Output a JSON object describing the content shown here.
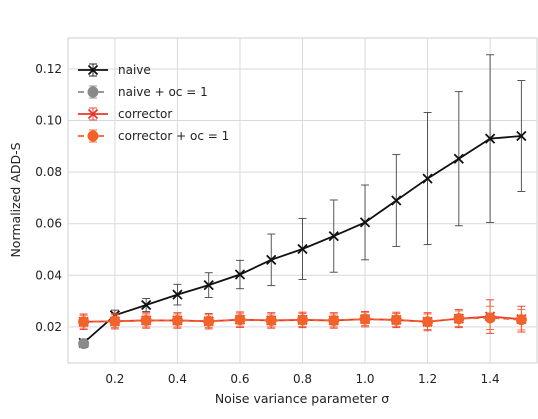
{
  "chart_data": {
    "type": "line",
    "xlabel": "Noise variance parameter σ",
    "ylabel": "Normalized ADD-S",
    "xlim": [
      0.05,
      1.55
    ],
    "ylim": [
      0.006,
      0.132
    ],
    "x_ticks": [
      0.2,
      0.4,
      0.6,
      0.8,
      1.0,
      1.2,
      1.4
    ],
    "x_tick_labels": [
      "0.2",
      "0.4",
      "0.6",
      "0.8",
      "1.0",
      "1.2",
      "1.4"
    ],
    "y_ticks": [
      0.02,
      0.04,
      0.06,
      0.08,
      0.1,
      0.12
    ],
    "y_tick_labels": [
      "0.02",
      "0.04",
      "0.06",
      "0.08",
      "0.10",
      "0.12"
    ],
    "grid": true,
    "legend_position": "top-left",
    "series": [
      {
        "name": "naive",
        "color": "#111111",
        "line_style": "solid",
        "marker": "x",
        "x": [
          0.1,
          0.2,
          0.3,
          0.4,
          0.5,
          0.6,
          0.7,
          0.8,
          0.9,
          1.0,
          1.1,
          1.2,
          1.3,
          1.4,
          1.5
        ],
        "y": [
          0.0138,
          0.0245,
          0.0285,
          0.0325,
          0.0362,
          0.0403,
          0.046,
          0.0502,
          0.0552,
          0.0605,
          0.069,
          0.0775,
          0.0852,
          0.093,
          0.094
        ],
        "err": [
          0.001,
          0.002,
          0.0025,
          0.004,
          0.0048,
          0.0055,
          0.01,
          0.0118,
          0.014,
          0.0145,
          0.0178,
          0.0256,
          0.026,
          0.0325,
          0.0215
        ]
      },
      {
        "name": "naive + oc = 1",
        "color": "#8a8a8a",
        "line_style": "dashed",
        "marker": "o",
        "x": [
          0.1
        ],
        "y": [
          0.0135
        ],
        "err": [
          0.001
        ]
      },
      {
        "name": "corrector",
        "color": "#e8372a",
        "line_style": "solid",
        "marker": "x",
        "x": [
          0.1,
          0.2,
          0.3,
          0.4,
          0.5,
          0.6,
          0.7,
          0.8,
          0.9,
          1.0,
          1.1,
          1.2,
          1.3,
          1.4,
          1.5
        ],
        "y": [
          0.022,
          0.0222,
          0.0225,
          0.0225,
          0.0222,
          0.0228,
          0.0225,
          0.0227,
          0.0225,
          0.023,
          0.0227,
          0.022,
          0.0232,
          0.024,
          0.023
        ],
        "err": [
          0.003,
          0.003,
          0.003,
          0.003,
          0.003,
          0.003,
          0.003,
          0.003,
          0.003,
          0.003,
          0.003,
          0.0035,
          0.0035,
          0.0065,
          0.005
        ]
      },
      {
        "name": "corrector + oc = 1",
        "color": "#f2632c",
        "line_style": "dashed",
        "marker": "o",
        "x": [
          0.1,
          0.2,
          0.3,
          0.4,
          0.5,
          0.6,
          0.7,
          0.8,
          0.9,
          1.0,
          1.1,
          1.2,
          1.3,
          1.4,
          1.5
        ],
        "y": [
          0.022,
          0.0222,
          0.0225,
          0.0225,
          0.0222,
          0.0228,
          0.0225,
          0.0227,
          0.0225,
          0.023,
          0.0227,
          0.022,
          0.0232,
          0.0235,
          0.0228
        ],
        "err": [
          0.0025,
          0.0025,
          0.0025,
          0.0025,
          0.0025,
          0.0025,
          0.0025,
          0.0025,
          0.0025,
          0.0025,
          0.0025,
          0.003,
          0.003,
          0.0045,
          0.004
        ]
      }
    ]
  }
}
